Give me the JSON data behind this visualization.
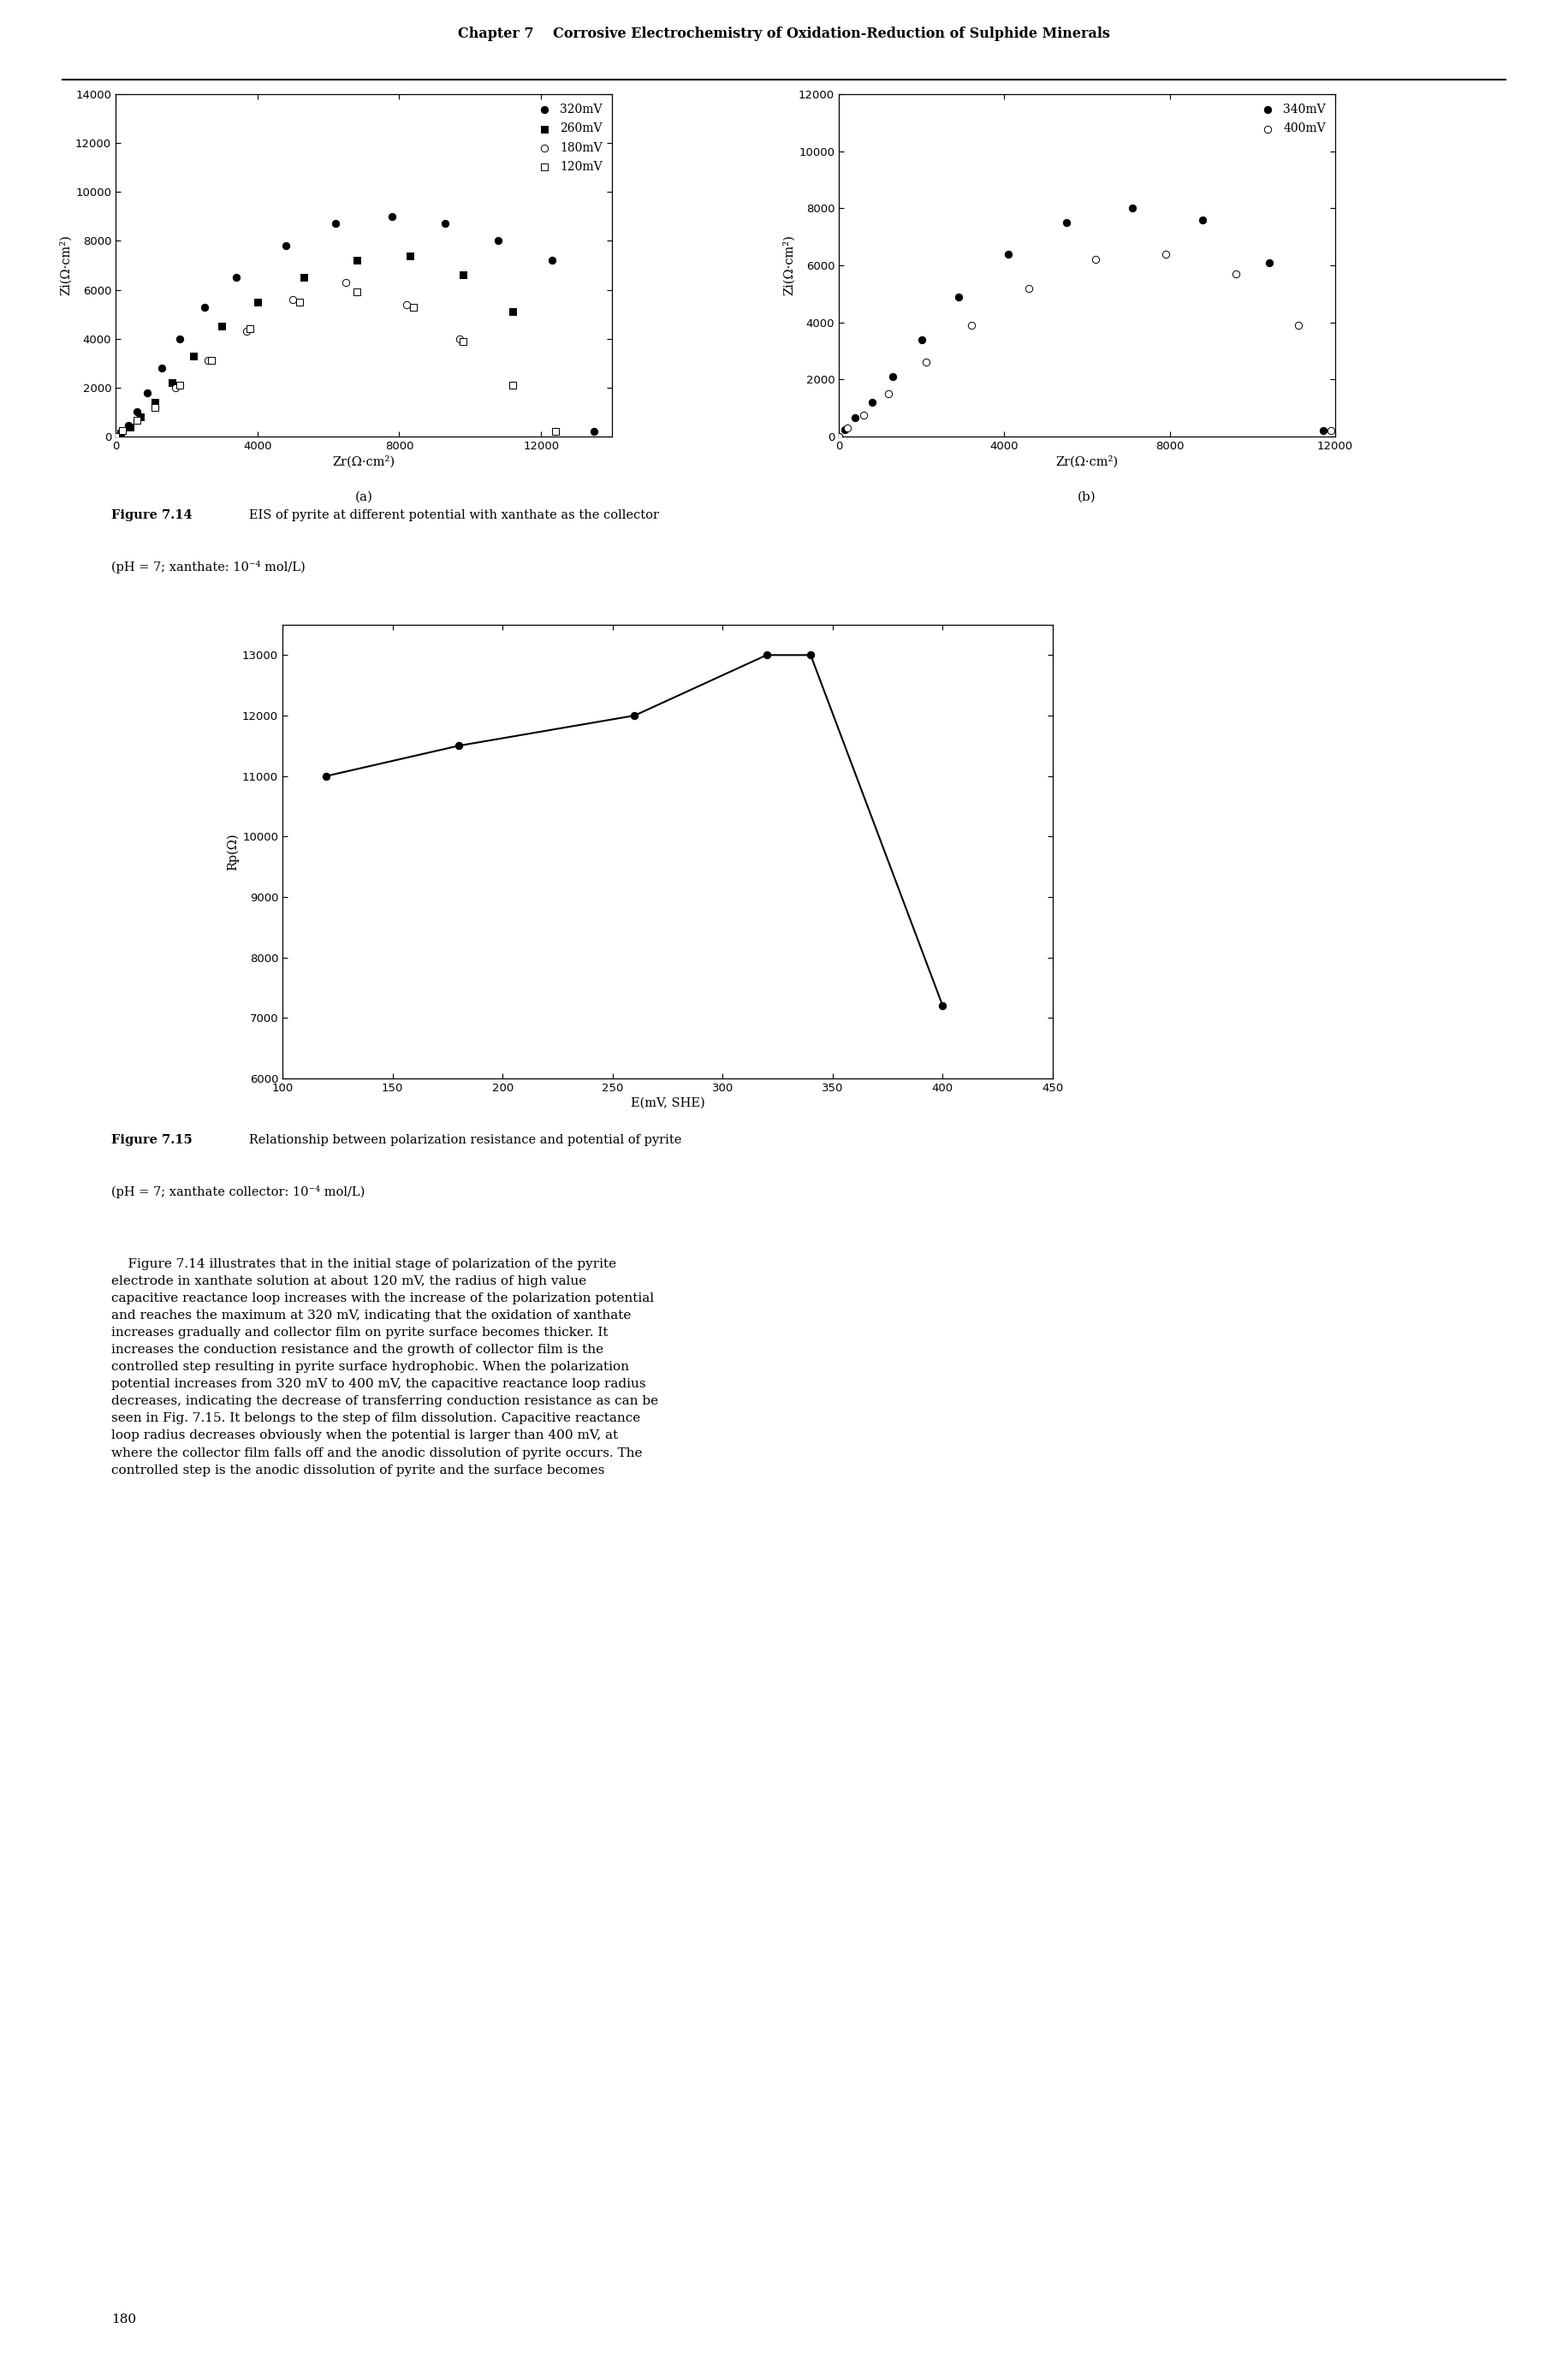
{
  "chapter_header": "Chapter 7    Corrosive Electrochemistry of Oxidation-Reduction of Sulphide Minerals",
  "fig714_caption_bold": "Figure 7.14   EIS of pyrite at different potential with xanthate as the collector",
  "fig714_caption_normal": "(pH = 7; xanthate: 10⁻⁴ mol/L)",
  "fig715_caption_bold": "Figure 7.15   Relationship between polarization resistance and potential of pyrite",
  "fig715_caption_normal": "(pH = 7; xanthate collector: 10⁻⁴ mol/L)",
  "plot_a": {
    "series": [
      {
        "label": "320mV",
        "marker": "o",
        "fill": "black",
        "zr": [
          0,
          150,
          350,
          600,
          900,
          1300,
          1800,
          2500,
          3400,
          4800,
          6200,
          7800,
          9300,
          10800,
          12300,
          13500
        ],
        "zi": [
          0,
          150,
          450,
          1000,
          1800,
          2800,
          4000,
          5300,
          6500,
          7800,
          8700,
          9000,
          8700,
          8000,
          7200,
          200
        ]
      },
      {
        "label": "260mV",
        "marker": "s",
        "fill": "black",
        "zr": [
          0,
          150,
          400,
          700,
          1100,
          1600,
          2200,
          3000,
          4000,
          5300,
          6800,
          8300,
          9800,
          11200,
          12400
        ],
        "zi": [
          0,
          150,
          400,
          800,
          1400,
          2200,
          3300,
          4500,
          5500,
          6500,
          7200,
          7400,
          6600,
          5100,
          200
        ]
      },
      {
        "label": "180mV",
        "marker": "o",
        "fill": "none",
        "zr": [
          0,
          200,
          600,
          1100,
          1700,
          2600,
          3700,
          5000,
          6500,
          8200,
          9700,
          11200,
          12400
        ],
        "zi": [
          0,
          250,
          650,
          1200,
          2000,
          3100,
          4300,
          5600,
          6300,
          5400,
          4000,
          2100,
          200
        ]
      },
      {
        "label": "120mV",
        "marker": "s",
        "fill": "none",
        "zr": [
          0,
          200,
          600,
          1100,
          1800,
          2700,
          3800,
          5200,
          6800,
          8400,
          9800,
          11200,
          12400
        ],
        "zi": [
          0,
          250,
          650,
          1200,
          2100,
          3100,
          4400,
          5500,
          5900,
          5300,
          3900,
          2100,
          200
        ]
      }
    ],
    "xlim": [
      0,
      14000
    ],
    "ylim": [
      0,
      14000
    ],
    "xticks": [
      0,
      4000,
      8000,
      12000
    ],
    "yticks": [
      0,
      2000,
      4000,
      6000,
      8000,
      10000,
      12000,
      14000
    ],
    "xlabel": "Zr(Ω·cm²)",
    "ylabel": "Zi(Ω·cm²)",
    "label": "a"
  },
  "plot_b": {
    "series": [
      {
        "label": "340mV",
        "marker": "o",
        "fill": "black",
        "zr": [
          0,
          150,
          400,
          800,
          1300,
          2000,
          2900,
          4100,
          5500,
          7100,
          8800,
          10400,
          11700
        ],
        "zi": [
          0,
          250,
          650,
          1200,
          2100,
          3400,
          4900,
          6400,
          7500,
          8000,
          7600,
          6100,
          200
        ]
      },
      {
        "label": "400mV",
        "marker": "o",
        "fill": "none",
        "zr": [
          0,
          200,
          600,
          1200,
          2100,
          3200,
          4600,
          6200,
          7900,
          9600,
          11100,
          11900
        ],
        "zi": [
          0,
          300,
          750,
          1500,
          2600,
          3900,
          5200,
          6200,
          6400,
          5700,
          3900,
          200
        ]
      }
    ],
    "xlim": [
      0,
      12000
    ],
    "ylim": [
      0,
      12000
    ],
    "xticks": [
      0,
      4000,
      8000,
      12000
    ],
    "yticks": [
      0,
      2000,
      4000,
      6000,
      8000,
      10000,
      12000
    ],
    "xlabel": "Zr(Ω·cm²)",
    "ylabel": "Zi(Ω·cm²)",
    "label": "b"
  },
  "plot_715": {
    "x": [
      120,
      180,
      260,
      320,
      340,
      400
    ],
    "y": [
      11000,
      11500,
      12000,
      13000,
      13000,
      7200
    ],
    "xlim": [
      100,
      450
    ],
    "ylim": [
      6000,
      13500
    ],
    "xticks": [
      100,
      150,
      200,
      250,
      300,
      350,
      400,
      450
    ],
    "yticks": [
      6000,
      7000,
      8000,
      9000,
      10000,
      11000,
      12000,
      13000
    ],
    "xlabel": "E(mV, SHE)",
    "ylabel": "Rp(Ω)"
  },
  "body_text": "    Figure 7.14 illustrates that in the initial stage of polarization of the pyrite\nelectrode in xanthate solution at about 120 mV, the radius of high value\ncapacitive reactance loop increases with the increase of the polarization potential\nand reaches the maximum at 320 mV, indicating that the oxidation of xanthate\nincreases gradually and collector film on pyrite surface becomes thicker. It\nincreases the conduction resistance and the growth of collector film is the\ncontrolled step resulting in pyrite surface hydrophobic. When the polarization\npotential increases from 320 mV to 400 mV, the capacitive reactance loop radius\ndecreases, indicating the decrease of transferring conduction resistance as can be\nseen in Fig. 7.15. It belongs to the step of film dissolution. Capacitive reactance\nloop radius decreases obviously when the potential is larger than 400 mV, at\nwhere the collector film falls off and the anodic dissolution of pyrite occurs. The\ncontrolled step is the anodic dissolution of pyrite and the surface becomes",
  "page_number": "180",
  "bg_color": "#ffffff",
  "marker_size": 6
}
